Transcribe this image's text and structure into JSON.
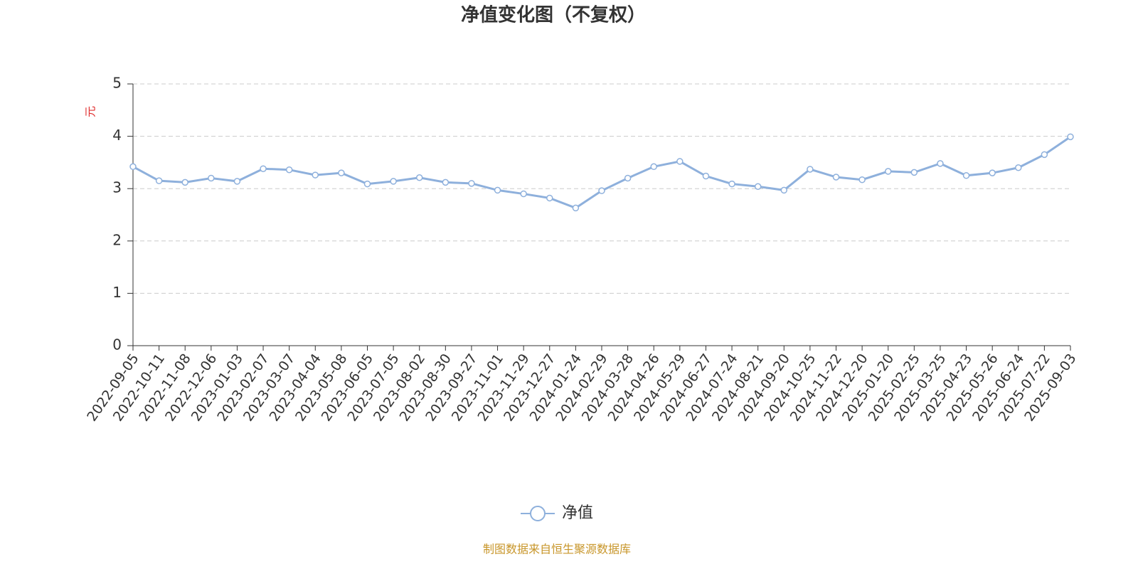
{
  "chart_data": {
    "type": "line",
    "title": "净值变化图（不复权）",
    "y_axis_label": "元",
    "categories": [
      "2022-09-05",
      "2022-10-11",
      "2022-11-08",
      "2022-12-06",
      "2023-01-03",
      "2023-02-07",
      "2023-03-07",
      "2023-04-04",
      "2023-05-08",
      "2023-06-05",
      "2023-07-05",
      "2023-08-02",
      "2023-08-30",
      "2023-09-27",
      "2023-11-01",
      "2023-11-29",
      "2023-12-27",
      "2024-01-24",
      "2024-02-29",
      "2024-03-28",
      "2024-04-26",
      "2024-05-29",
      "2024-06-27",
      "2024-07-24",
      "2024-08-21",
      "2024-09-20",
      "2024-10-25",
      "2024-11-22",
      "2024-12-20",
      "2025-01-20",
      "2025-02-25",
      "2025-03-25",
      "2025-04-23",
      "2025-05-26",
      "2025-06-24",
      "2025-07-22",
      "2025-09-03"
    ],
    "series": [
      {
        "name": "净值",
        "color": "#8eb0dc",
        "values": [
          3.42,
          3.15,
          3.12,
          3.2,
          3.14,
          3.38,
          3.36,
          3.26,
          3.3,
          3.09,
          3.14,
          3.21,
          3.12,
          3.1,
          2.97,
          2.9,
          2.82,
          2.63,
          2.96,
          3.2,
          3.42,
          3.52,
          3.24,
          3.09,
          3.04,
          2.97,
          3.37,
          3.22,
          3.17,
          3.33,
          3.31,
          3.48,
          3.25,
          3.3,
          3.4,
          3.65,
          3.99
        ]
      }
    ],
    "ylim": [
      0,
      5
    ],
    "yticks": [
      0,
      1,
      2,
      3,
      4,
      5
    ],
    "grid": true,
    "legend": "bottom",
    "source": "制图数据来自恒生聚源数据库"
  }
}
